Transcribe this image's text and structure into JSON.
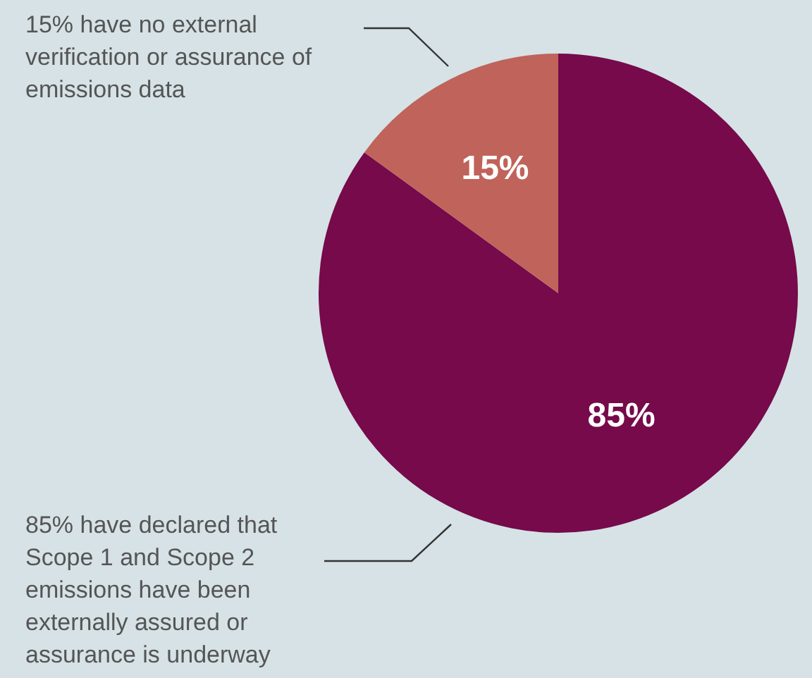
{
  "chart_data": {
    "type": "pie",
    "categories": [
      null,
      null
    ],
    "values": [
      85,
      15
    ],
    "colors": [
      "#760a4b",
      "#c0635a"
    ],
    "value_labels": [
      "85%",
      "15%"
    ],
    "legend": false,
    "annotations": [
      "15% have no external verification or assurance of emissions data",
      "85% have declared that Scope 1 and Scope 2 emissions have been externally assured or assurance is underway"
    ]
  }
}
